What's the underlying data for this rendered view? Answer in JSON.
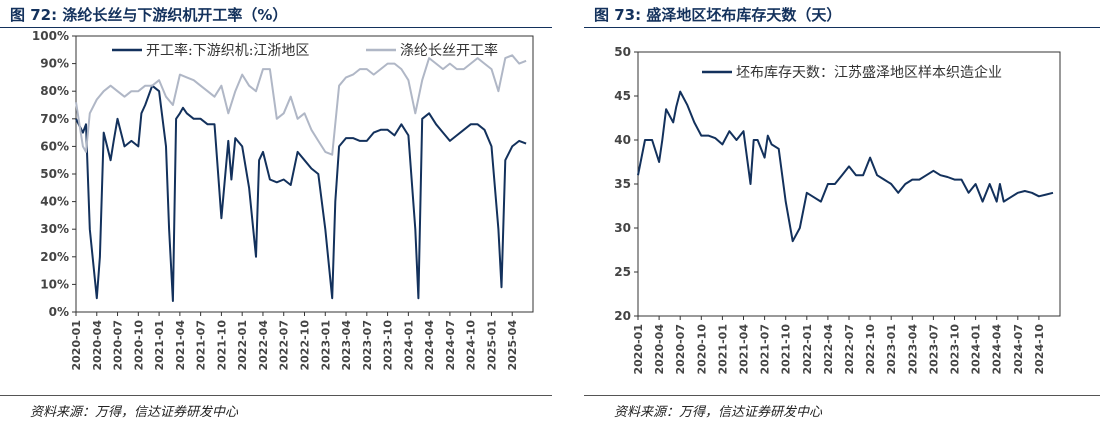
{
  "left": {
    "figure_title": "图 72: 涤纶长丝与下游织机开工率（%）",
    "source": "资料来源：万得，信达证券研发中心"
  },
  "right": {
    "figure_title": "图 73: 盛泽地区坯布库存天数（天）",
    "source": "资料来源：万得，信达证券研发中心"
  },
  "chart_data": [
    {
      "type": "line",
      "ylim": [
        0,
        100
      ],
      "yticks": [
        "0%",
        "10%",
        "20%",
        "30%",
        "40%",
        "50%",
        "60%",
        "70%",
        "80%",
        "90%",
        "100%"
      ],
      "xticks": [
        "2020-01",
        "2020-04",
        "2020-07",
        "2020-10",
        "2021-01",
        "2021-04",
        "2021-07",
        "2021-10",
        "2022-01",
        "2022-04",
        "2022-07",
        "2022-10",
        "2023-01",
        "2023-04",
        "2023-07",
        "2023-10",
        "2024-01",
        "2024-04",
        "2024-07",
        "2024-10",
        "2025-01",
        "2025-04"
      ],
      "legend_position": "top",
      "series": [
        {
          "name": "开工率:下游织机:江浙地区",
          "color": "#13315c",
          "x": [
            "2020-01",
            "2020-02",
            "2020-02",
            "2020-03",
            "2020-04",
            "2020-04",
            "2020-05",
            "2020-06",
            "2020-06",
            "2020-07",
            "2020-08",
            "2020-09",
            "2020-10",
            "2020-10",
            "2020-11",
            "2020-12",
            "2021-01",
            "2021-02",
            "2021-02",
            "2021-03",
            "2021-03",
            "2021-04",
            "2021-04",
            "2021-05",
            "2021-06",
            "2021-07",
            "2021-08",
            "2021-09",
            "2021-10",
            "2021-11",
            "2021-11",
            "2021-12",
            "2022-01",
            "2022-02",
            "2022-03",
            "2022-03",
            "2022-04",
            "2022-05",
            "2022-06",
            "2022-07",
            "2022-08",
            "2022-09",
            "2022-10",
            "2022-11",
            "2022-12",
            "2023-01",
            "2023-02",
            "2023-02",
            "2023-03",
            "2023-04",
            "2023-05",
            "2023-06",
            "2023-07",
            "2023-08",
            "2023-09",
            "2023-10",
            "2023-11",
            "2023-12",
            "2024-01",
            "2024-02",
            "2024-02",
            "2024-03",
            "2024-04",
            "2024-05",
            "2024-06",
            "2024-07",
            "2024-08",
            "2024-09",
            "2024-10",
            "2024-11",
            "2024-12",
            "2025-01",
            "2025-02",
            "2025-02",
            "2025-03",
            "2025-04",
            "2025-05",
            "2025-06"
          ],
          "y": [
            70,
            65,
            68,
            30,
            5,
            20,
            65,
            55,
            62,
            70,
            60,
            62,
            60,
            72,
            75,
            82,
            80,
            60,
            30,
            4,
            70,
            72,
            74,
            72,
            70,
            70,
            68,
            68,
            34,
            62,
            48,
            63,
            60,
            45,
            20,
            55,
            58,
            48,
            47,
            48,
            46,
            58,
            55,
            52,
            50,
            30,
            5,
            40,
            60,
            63,
            63,
            62,
            62,
            65,
            66,
            66,
            64,
            68,
            64,
            30,
            5,
            70,
            72,
            68,
            65,
            62,
            64,
            66,
            68,
            68,
            66,
            60,
            30,
            9,
            55,
            60,
            62,
            61
          ]
        },
        {
          "name": "涤纶长丝开工率",
          "color": "#b0b7c6",
          "x": [
            "2020-01",
            "2020-02",
            "2020-02",
            "2020-03",
            "2020-04",
            "2020-05",
            "2020-06",
            "2020-07",
            "2020-08",
            "2020-09",
            "2020-10",
            "2020-11",
            "2020-12",
            "2021-01",
            "2021-02",
            "2021-03",
            "2021-04",
            "2021-05",
            "2021-06",
            "2021-07",
            "2021-08",
            "2021-09",
            "2021-10",
            "2021-11",
            "2021-12",
            "2022-01",
            "2022-02",
            "2022-03",
            "2022-04",
            "2022-05",
            "2022-06",
            "2022-07",
            "2022-08",
            "2022-09",
            "2022-10",
            "2022-11",
            "2022-12",
            "2023-01",
            "2023-02",
            "2023-03",
            "2023-04",
            "2023-05",
            "2023-06",
            "2023-07",
            "2023-08",
            "2023-09",
            "2023-10",
            "2023-11",
            "2023-12",
            "2024-01",
            "2024-02",
            "2024-03",
            "2024-04",
            "2024-05",
            "2024-06",
            "2024-07",
            "2024-08",
            "2024-09",
            "2024-10",
            "2024-11",
            "2024-12",
            "2025-01",
            "2025-02",
            "2025-03",
            "2025-04",
            "2025-05",
            "2025-06"
          ],
          "y": [
            76,
            60,
            58,
            72,
            77,
            80,
            82,
            80,
            78,
            80,
            80,
            82,
            82,
            84,
            78,
            75,
            86,
            85,
            84,
            82,
            80,
            78,
            82,
            72,
            80,
            86,
            82,
            80,
            88,
            88,
            70,
            72,
            78,
            70,
            72,
            66,
            62,
            58,
            57,
            82,
            85,
            86,
            88,
            88,
            86,
            88,
            90,
            90,
            88,
            84,
            72,
            84,
            92,
            90,
            88,
            90,
            88,
            88,
            90,
            92,
            90,
            88,
            80,
            92,
            93,
            90,
            91
          ]
        }
      ]
    },
    {
      "type": "line",
      "ylim": [
        20,
        50
      ],
      "yticks": [
        "20",
        "25",
        "30",
        "35",
        "40",
        "45",
        "50"
      ],
      "xticks": [
        "2020-01",
        "2020-04",
        "2020-07",
        "2020-10",
        "2021-01",
        "2021-04",
        "2021-07",
        "2021-10",
        "2022-01",
        "2022-04",
        "2022-07",
        "2022-10",
        "2023-01",
        "2023-04",
        "2023-07",
        "2023-10",
        "2024-01",
        "2024-04",
        "2024-07",
        "2024-10"
      ],
      "legend_position": "top",
      "series": [
        {
          "name": "坯布库存天数：江苏盛泽地区样本织造企业",
          "color": "#13315c",
          "x": [
            "2020-01",
            "2020-02",
            "2020-03",
            "2020-04",
            "2020-04",
            "2020-05",
            "2020-06",
            "2020-06",
            "2020-07",
            "2020-08",
            "2020-09",
            "2020-10",
            "2020-11",
            "2020-12",
            "2021-01",
            "2021-02",
            "2021-03",
            "2021-04",
            "2021-05",
            "2021-05",
            "2021-06",
            "2021-07",
            "2021-07",
            "2021-08",
            "2021-09",
            "2021-10",
            "2021-11",
            "2021-12",
            "2022-01",
            "2022-02",
            "2022-03",
            "2022-04",
            "2022-05",
            "2022-06",
            "2022-07",
            "2022-08",
            "2022-09",
            "2022-10",
            "2022-11",
            "2022-12",
            "2023-01",
            "2023-02",
            "2023-03",
            "2023-04",
            "2023-05",
            "2023-06",
            "2023-07",
            "2023-08",
            "2023-09",
            "2023-10",
            "2023-11",
            "2023-12",
            "2024-01",
            "2024-02",
            "2024-03",
            "2024-04",
            "2024-04",
            "2024-05",
            "2024-06",
            "2024-07",
            "2024-08",
            "2024-09",
            "2024-10",
            "2024-11",
            "2024-12"
          ],
          "y": [
            36,
            40,
            40,
            37.5,
            40,
            43.5,
            42,
            43.8,
            45.5,
            44,
            42,
            40.5,
            40.5,
            40.2,
            39.5,
            41,
            40,
            41,
            35,
            40,
            40,
            38,
            40.5,
            39.5,
            39,
            33,
            28.5,
            30,
            34,
            33.5,
            33,
            35,
            35,
            36,
            37,
            36,
            36,
            38,
            36,
            35.5,
            35,
            34,
            35,
            35.5,
            35.5,
            36,
            36.5,
            36,
            35.8,
            35.5,
            35.5,
            34,
            35,
            33,
            35,
            33,
            35,
            33,
            33.5,
            34,
            34.2,
            34,
            33.6,
            33.8,
            34
          ]
        }
      ]
    }
  ]
}
